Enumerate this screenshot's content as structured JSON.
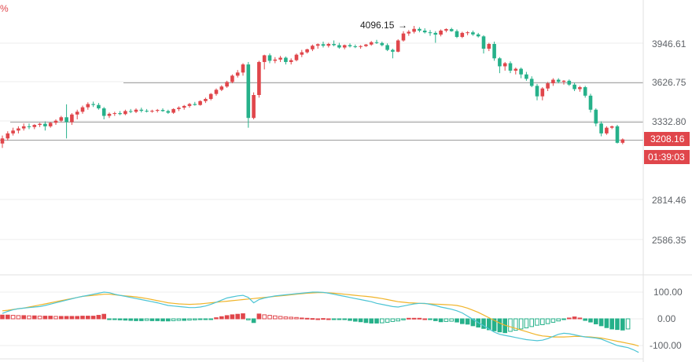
{
  "corner_label": "%",
  "colors": {
    "up": "#e0464b",
    "down": "#26b18a",
    "macd_line": "#4cc4d4",
    "signal_line": "#f0b429",
    "hline": "#9e9e9e",
    "grid": "#eeeeee"
  },
  "price_axis": {
    "ticks": [
      "3946.61",
      "3626.75",
      "3332.80",
      "2814.46",
      "2586.35"
    ]
  },
  "current_price_tag": {
    "value": "3208.16",
    "color": "#e0464b"
  },
  "countdown_tag": {
    "value": "01:39:03",
    "color": "#e0464b"
  },
  "high_marker": {
    "label": "4096.15",
    "arrow": "→"
  },
  "macd_axis": {
    "ticks": [
      "100.00",
      "0.00",
      "-100.00"
    ]
  },
  "chart_data": [
    {
      "type": "candlestick",
      "title": "",
      "ylim": [
        2500,
        4160
      ],
      "y_scale": "log",
      "horizontal_lines": [
        3626.75,
        3332.8,
        3208.16
      ],
      "ohlc": [
        [
          3180,
          3235,
          3150,
          3215
        ],
        [
          3215,
          3265,
          3200,
          3250
        ],
        [
          3250,
          3290,
          3235,
          3270
        ],
        [
          3270,
          3300,
          3250,
          3285
        ],
        [
          3285,
          3320,
          3270,
          3300
        ],
        [
          3300,
          3320,
          3280,
          3295
        ],
        [
          3295,
          3315,
          3280,
          3310
        ],
        [
          3310,
          3325,
          3295,
          3318
        ],
        [
          3318,
          3335,
          3270,
          3300
        ],
        [
          3300,
          3330,
          3290,
          3325
        ],
        [
          3325,
          3350,
          3310,
          3340
        ],
        [
          3340,
          3375,
          3330,
          3365
        ],
        [
          3365,
          3460,
          3215,
          3330
        ],
        [
          3330,
          3395,
          3310,
          3385
        ],
        [
          3385,
          3420,
          3350,
          3405
        ],
        [
          3405,
          3450,
          3390,
          3438
        ],
        [
          3438,
          3475,
          3420,
          3462
        ],
        [
          3462,
          3480,
          3440,
          3455
        ],
        [
          3455,
          3470,
          3420,
          3430
        ],
        [
          3430,
          3440,
          3350,
          3375
        ],
        [
          3375,
          3400,
          3360,
          3390
        ],
        [
          3390,
          3405,
          3375,
          3395
        ],
        [
          3395,
          3410,
          3380,
          3388
        ],
        [
          3388,
          3420,
          3380,
          3410
        ],
        [
          3410,
          3425,
          3395,
          3405
        ],
        [
          3405,
          3430,
          3395,
          3420
        ],
        [
          3420,
          3435,
          3400,
          3412
        ],
        [
          3412,
          3425,
          3400,
          3408
        ],
        [
          3408,
          3420,
          3398,
          3412
        ],
        [
          3412,
          3425,
          3400,
          3418
        ],
        [
          3418,
          3430,
          3405,
          3410
        ],
        [
          3410,
          3420,
          3390,
          3398
        ],
        [
          3398,
          3430,
          3390,
          3425
        ],
        [
          3425,
          3445,
          3410,
          3435
        ],
        [
          3435,
          3455,
          3420,
          3448
        ],
        [
          3448,
          3470,
          3435,
          3462
        ],
        [
          3462,
          3478,
          3450,
          3455
        ],
        [
          3455,
          3490,
          3450,
          3484
        ],
        [
          3484,
          3510,
          3470,
          3500
        ],
        [
          3500,
          3545,
          3490,
          3538
        ],
        [
          3538,
          3580,
          3525,
          3570
        ],
        [
          3570,
          3605,
          3560,
          3595
        ],
        [
          3595,
          3640,
          3585,
          3630
        ],
        [
          3630,
          3690,
          3620,
          3680
        ],
        [
          3680,
          3725,
          3665,
          3705
        ],
        [
          3705,
          3780,
          3680,
          3770
        ],
        [
          3770,
          3790,
          3290,
          3360
        ],
        [
          3360,
          3550,
          3350,
          3530
        ],
        [
          3530,
          3800,
          3510,
          3790
        ],
        [
          3790,
          3850,
          3730,
          3845
        ],
        [
          3845,
          3860,
          3780,
          3800
        ],
        [
          3800,
          3830,
          3780,
          3810
        ],
        [
          3810,
          3840,
          3790,
          3825
        ],
        [
          3825,
          3835,
          3770,
          3790
        ],
        [
          3790,
          3820,
          3770,
          3805
        ],
        [
          3805,
          3860,
          3795,
          3850
        ],
        [
          3850,
          3890,
          3830,
          3870
        ],
        [
          3870,
          3900,
          3860,
          3895
        ],
        [
          3895,
          3935,
          3880,
          3925
        ],
        [
          3925,
          3945,
          3900,
          3938
        ],
        [
          3938,
          3960,
          3910,
          3925
        ],
        [
          3925,
          3950,
          3910,
          3940
        ],
        [
          3940,
          3970,
          3920,
          3930
        ],
        [
          3930,
          3950,
          3900,
          3910
        ],
        [
          3910,
          3935,
          3895,
          3930
        ],
        [
          3930,
          3945,
          3910,
          3920
        ],
        [
          3920,
          3935,
          3905,
          3915
        ],
        [
          3915,
          3930,
          3900,
          3922
        ],
        [
          3922,
          3940,
          3915,
          3935
        ],
        [
          3935,
          3965,
          3925,
          3955
        ],
        [
          3955,
          3975,
          3940,
          3948
        ],
        [
          3948,
          3960,
          3920,
          3930
        ],
        [
          3930,
          3945,
          3880,
          3890
        ],
        [
          3890,
          3900,
          3820,
          3875
        ],
        [
          3875,
          3980,
          3870,
          3970
        ],
        [
          3970,
          4050,
          3960,
          4030
        ],
        [
          4030,
          4060,
          4010,
          4045
        ],
        [
          4045,
          4096.15,
          4030,
          4070
        ],
        [
          4070,
          4085,
          4040,
          4055
        ],
        [
          4055,
          4075,
          4030,
          4040
        ],
        [
          4040,
          4060,
          4010,
          4035
        ],
        [
          4035,
          4050,
          3950,
          4020
        ],
        [
          4020,
          4065,
          4005,
          4055
        ],
        [
          4055,
          4075,
          4040,
          4068
        ],
        [
          4068,
          4080,
          4045,
          4050
        ],
        [
          4050,
          4065,
          3990,
          4000
        ],
        [
          4000,
          4045,
          3990,
          4035
        ],
        [
          4035,
          4050,
          4015,
          4040
        ],
        [
          4040,
          4055,
          4010,
          4022
        ],
        [
          4022,
          4035,
          3995,
          4005
        ],
        [
          4005,
          4015,
          3860,
          3900
        ],
        [
          3900,
          3950,
          3880,
          3940
        ],
        [
          3940,
          3960,
          3800,
          3820
        ],
        [
          3820,
          3830,
          3700,
          3755
        ],
        [
          3755,
          3790,
          3720,
          3780
        ],
        [
          3780,
          3795,
          3700,
          3720
        ],
        [
          3720,
          3745,
          3690,
          3735
        ],
        [
          3735,
          3745,
          3660,
          3690
        ],
        [
          3690,
          3710,
          3640,
          3655
        ],
        [
          3655,
          3675,
          3590,
          3600
        ],
        [
          3600,
          3615,
          3490,
          3520
        ],
        [
          3520,
          3590,
          3490,
          3580
        ],
        [
          3580,
          3630,
          3560,
          3620
        ],
        [
          3620,
          3660,
          3600,
          3648
        ],
        [
          3648,
          3660,
          3620,
          3632
        ],
        [
          3632,
          3645,
          3610,
          3640
        ],
        [
          3640,
          3650,
          3600,
          3610
        ],
        [
          3610,
          3625,
          3560,
          3575
        ],
        [
          3575,
          3600,
          3555,
          3590
        ],
        [
          3590,
          3600,
          3510,
          3525
        ],
        [
          3525,
          3540,
          3400,
          3420
        ],
        [
          3420,
          3430,
          3300,
          3320
        ],
        [
          3320,
          3335,
          3230,
          3250
        ],
        [
          3250,
          3300,
          3240,
          3290
        ],
        [
          3290,
          3305,
          3280,
          3300
        ],
        [
          3300,
          3310,
          3180,
          3185
        ],
        [
          3185,
          3215,
          3175,
          3208.16
        ]
      ]
    },
    {
      "type": "macd",
      "title": "",
      "ylim": [
        -130,
        130
      ],
      "histogram": [
        14,
        14,
        13,
        12,
        12,
        11,
        11,
        10,
        10,
        10,
        9,
        9,
        9,
        9,
        9,
        10,
        10,
        10,
        13,
        17,
        -2,
        -3,
        -4,
        -5,
        -6,
        -7,
        -7,
        -6,
        -7,
        -7,
        -8,
        -8,
        -7,
        -6,
        -6,
        -5,
        -4,
        -3,
        -2,
        -1,
        4,
        8,
        12,
        15,
        17,
        19,
        -4,
        -14,
        18,
        15,
        13,
        11,
        9,
        7,
        6,
        5,
        3,
        2,
        1,
        0,
        1,
        0,
        -1,
        -2,
        -3,
        -6,
        -9,
        -11,
        -14,
        -16,
        -16,
        -15,
        -13,
        -10,
        -8,
        -4,
        2,
        2,
        2,
        0,
        -2,
        -7,
        -11,
        -10,
        -9,
        -12,
        -18,
        -20,
        -26,
        -31,
        -36,
        -41,
        -45,
        -49,
        -52,
        -47,
        -43,
        -38,
        -34,
        -29,
        -24,
        -22,
        -18,
        -13,
        -8,
        -3,
        3,
        7,
        3,
        -6,
        -12,
        -19,
        -26,
        -33,
        -38,
        -40,
        -42,
        -38
      ],
      "macd_line": [
        20,
        28,
        34,
        38,
        40,
        42,
        44,
        46,
        50,
        55,
        60,
        65,
        70,
        75,
        80,
        84,
        88,
        92,
        96,
        100,
        98,
        92,
        88,
        84,
        80,
        76,
        72,
        68,
        64,
        60,
        55,
        50,
        48,
        46,
        44,
        42,
        42,
        44,
        48,
        54,
        62,
        70,
        78,
        82,
        86,
        88,
        80,
        60,
        72,
        78,
        82,
        86,
        88,
        90,
        92,
        94,
        96,
        98,
        100,
        100,
        99,
        96,
        92,
        88,
        84,
        80,
        76,
        72,
        68,
        64,
        58,
        54,
        50,
        46,
        44,
        48,
        52,
        56,
        58,
        58,
        54,
        50,
        44,
        40,
        36,
        30,
        22,
        10,
        -2,
        -14,
        -26,
        -38,
        -50,
        -58,
        -62,
        -66,
        -70,
        -74,
        -78,
        -80,
        -82,
        -80,
        -74,
        -66,
        -58,
        -54,
        -56,
        -60,
        -64,
        -68,
        -70,
        -72,
        -76,
        -84,
        -92,
        -100,
        -104,
        -108,
        -116,
        -126
      ],
      "signal_line": [
        30,
        32,
        35,
        38,
        40,
        44,
        48,
        52,
        56,
        60,
        64,
        68,
        72,
        76,
        80,
        84,
        86,
        88,
        90,
        92,
        92,
        90,
        88,
        86,
        84,
        82,
        79,
        76,
        72,
        68,
        64,
        60,
        58,
        56,
        55,
        54,
        55,
        56,
        58,
        60,
        62,
        64,
        66,
        68,
        70,
        72,
        74,
        76,
        78,
        80,
        82,
        84,
        86,
        88,
        90,
        92,
        94,
        96,
        97,
        98,
        98,
        97,
        96,
        94,
        92,
        90,
        88,
        86,
        84,
        82,
        79,
        76,
        72,
        68,
        64,
        62,
        60,
        59,
        58,
        57,
        56,
        55,
        54,
        53,
        52,
        50,
        46,
        40,
        32,
        24,
        14,
        4,
        -6,
        -16,
        -24,
        -30,
        -36,
        -42,
        -48,
        -54,
        -60,
        -64,
        -66,
        -68,
        -68,
        -68,
        -67,
        -66,
        -66,
        -67,
        -68,
        -70,
        -72,
        -76,
        -80,
        -84,
        -88,
        -92,
        -96,
        -102
      ]
    }
  ]
}
